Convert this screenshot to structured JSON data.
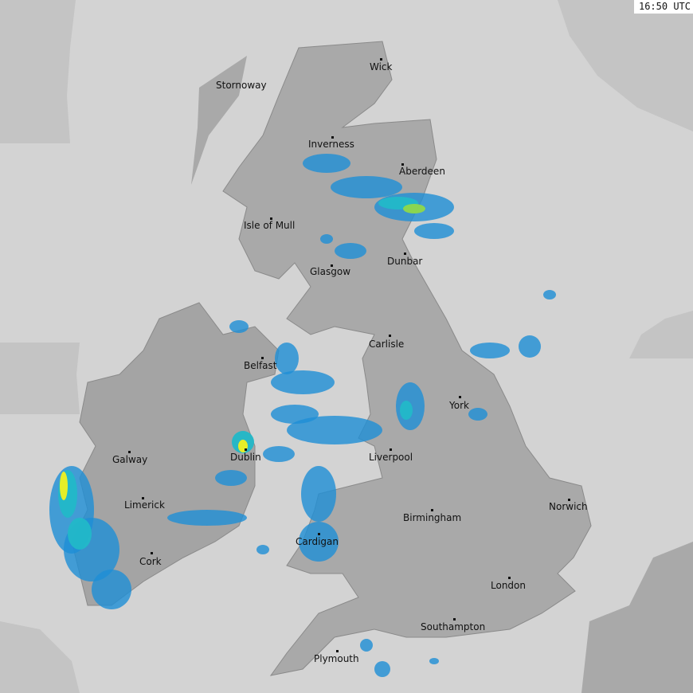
{
  "timestamp": "16:50 UTC",
  "colors": {
    "outside_coverage": "#c4c4c4",
    "coverage": "#d3d3d3",
    "land": "#a9a9a9",
    "rain_light": "#1e8fd6",
    "rain_moderate": "#22b8c8",
    "rain_heavy": "#8ed84a",
    "rain_very_heavy": "#f0f020"
  },
  "cities": [
    {
      "name": "Wick"
    },
    {
      "name": "Stornoway"
    },
    {
      "name": "Inverness"
    },
    {
      "name": "Aberdeen"
    },
    {
      "name": "Isle of Mull"
    },
    {
      "name": "Dunbar"
    },
    {
      "name": "Glasgow"
    },
    {
      "name": "Carlisle"
    },
    {
      "name": "Belfast"
    },
    {
      "name": "York"
    },
    {
      "name": "Dublin"
    },
    {
      "name": "Galway"
    },
    {
      "name": "Liverpool"
    },
    {
      "name": "Limerick"
    },
    {
      "name": "Norwich"
    },
    {
      "name": "Birmingham"
    },
    {
      "name": "Cardigan"
    },
    {
      "name": "Cork"
    },
    {
      "name": "London"
    },
    {
      "name": "Southampton"
    },
    {
      "name": "Plymouth"
    }
  ]
}
